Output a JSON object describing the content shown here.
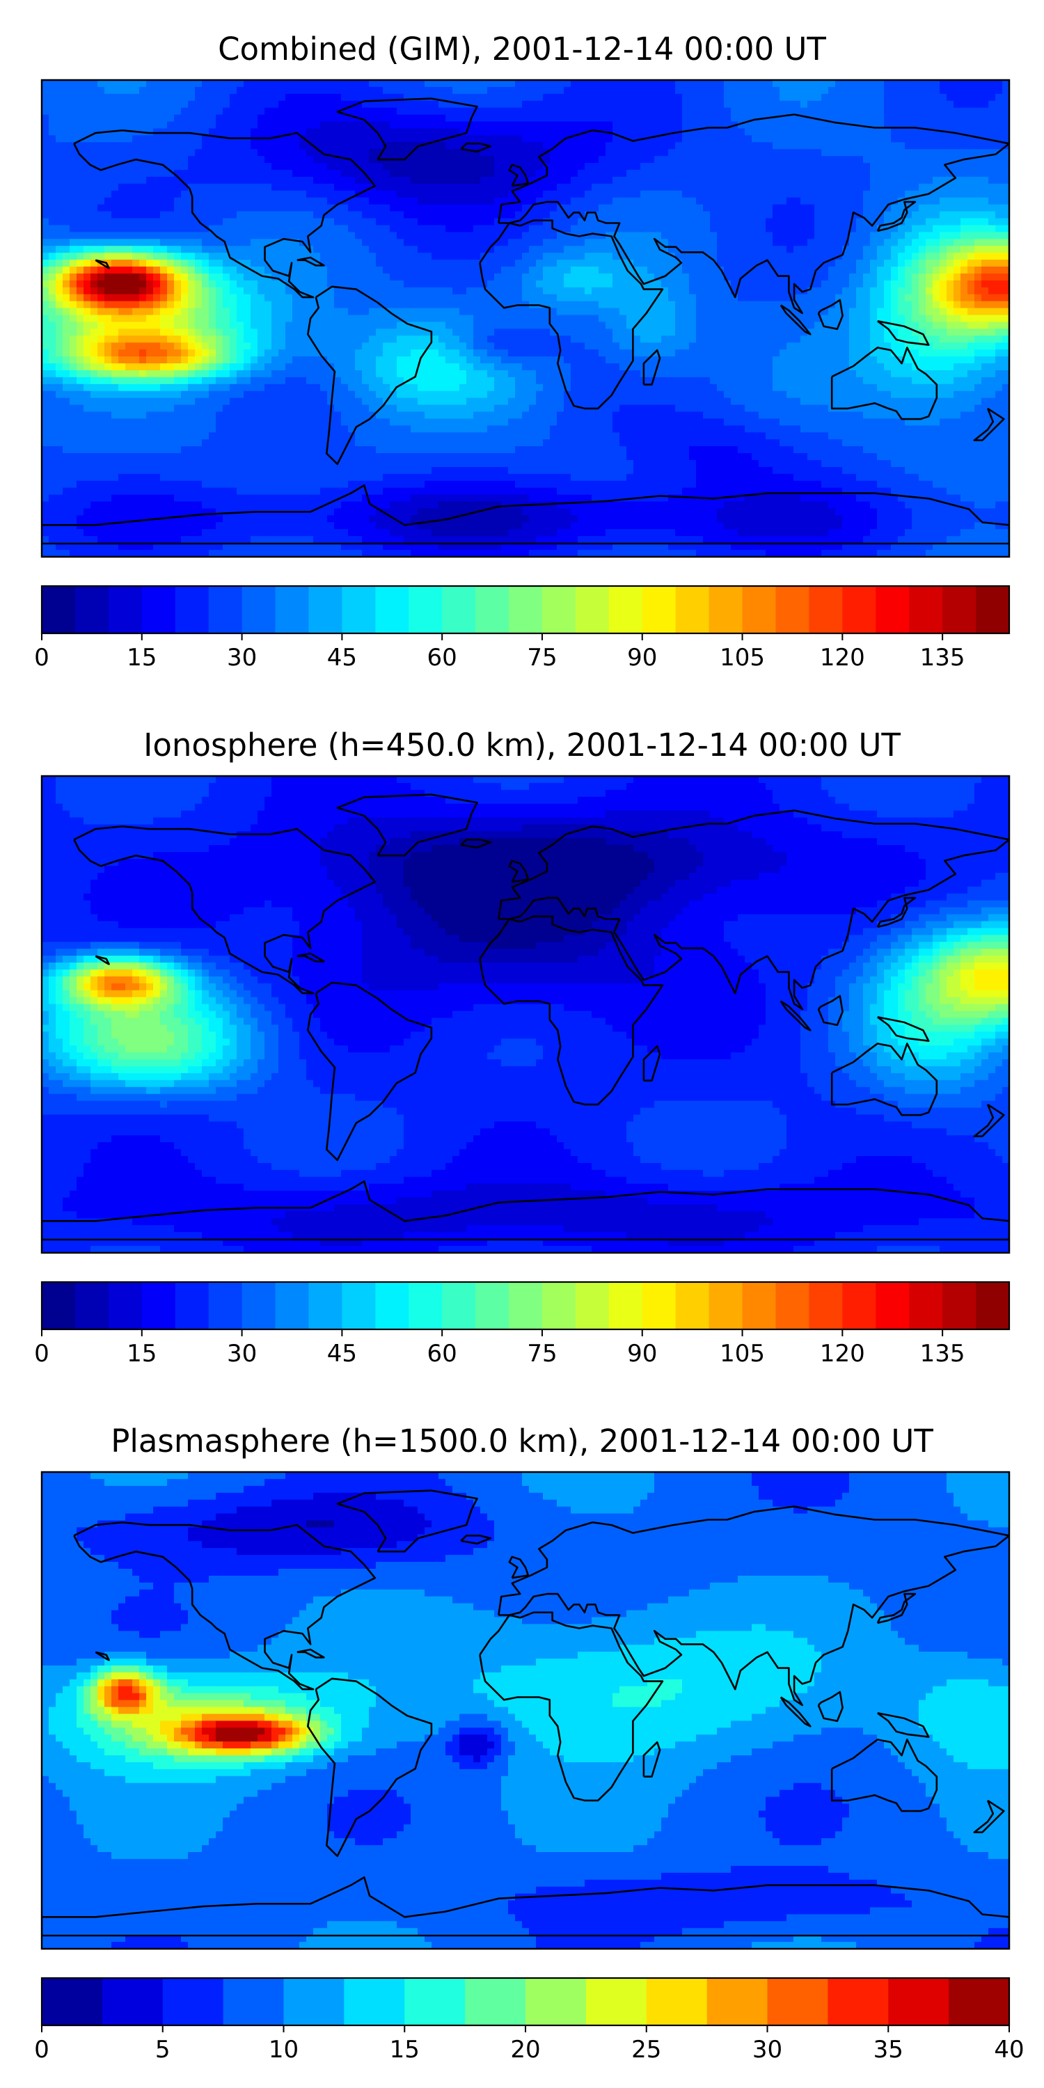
{
  "panels": [
    {
      "title": "Combined (GIM), 2001-12-14 00:00 UT",
      "field": "combined",
      "colorbar": {
        "min": 0,
        "max": 145,
        "levels": 29,
        "ticks": [
          "0",
          "15",
          "30",
          "45",
          "60",
          "75",
          "90",
          "105",
          "120",
          "135"
        ],
        "tick_values": [
          0,
          15,
          30,
          45,
          60,
          75,
          90,
          105,
          120,
          135
        ]
      }
    },
    {
      "title": "Ionosphere  (h=450.0 km), 2001-12-14 00:00 UT",
      "field": "ionosphere",
      "colorbar": {
        "min": 0,
        "max": 145,
        "levels": 29,
        "ticks": [
          "0",
          "15",
          "30",
          "45",
          "60",
          "75",
          "90",
          "105",
          "120",
          "135"
        ],
        "tick_values": [
          0,
          15,
          30,
          45,
          60,
          75,
          90,
          105,
          120,
          135
        ]
      }
    },
    {
      "title": "Plasmasphere (h=1500.0 km), 2001-12-14 00:00 UT",
      "field": "plasmasphere",
      "colorbar": {
        "min": 0,
        "max": 40,
        "levels": 16,
        "ticks": [
          "0",
          "5",
          "10",
          "15",
          "20",
          "25",
          "30",
          "35",
          "40"
        ],
        "tick_values": [
          0,
          5,
          10,
          15,
          20,
          25,
          30,
          35,
          40
        ]
      }
    }
  ],
  "colormap": "jet",
  "projection": "plate carree, 180W-180E, 90S-90N",
  "coastline_color": "#000000"
}
